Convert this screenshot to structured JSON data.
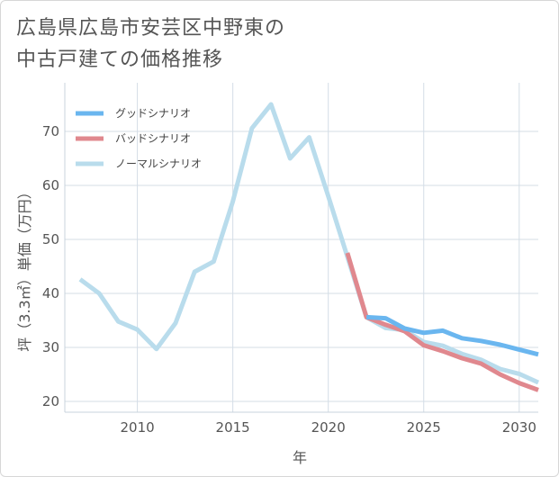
{
  "title": {
    "line1": "広島県広島市安芸区中野東の",
    "line2": "中古戸建ての価格推移"
  },
  "chart_data": {
    "type": "line",
    "xlabel": "年",
    "ylabel": "坪（3.3㎡）単価（万円）",
    "xlim": [
      2006.2,
      2031
    ],
    "ylim": [
      18,
      79
    ],
    "x_ticks": [
      2010,
      2015,
      2020,
      2025,
      2030
    ],
    "y_ticks": [
      20,
      30,
      40,
      50,
      60,
      70
    ],
    "grid": true,
    "legend_position": "top-left",
    "series": [
      {
        "name": "グッドシナリオ",
        "color": "#6ab6ef",
        "x": [
          2022,
          2023,
          2024,
          2025,
          2026,
          2027,
          2028,
          2029,
          2030,
          2031
        ],
        "values": [
          35.6,
          35.4,
          33.5,
          32.7,
          33.1,
          31.7,
          31.2,
          30.5,
          29.6,
          28.7
        ]
      },
      {
        "name": "バッドシナリオ",
        "color": "#e0888e",
        "x": [
          2021,
          2022,
          2023,
          2024,
          2025,
          2026,
          2027,
          2028,
          2029,
          2030,
          2031
        ],
        "values": [
          47.5,
          35.6,
          34.2,
          33.0,
          30.4,
          29.3,
          28.0,
          27.0,
          25.0,
          23.4,
          22.1
        ]
      },
      {
        "name": "ノーマルシナリオ",
        "color": "#b9dcec",
        "x": [
          2007,
          2008,
          2009,
          2010,
          2011,
          2012,
          2013,
          2014,
          2015,
          2016,
          2017,
          2018,
          2019,
          2020,
          2021,
          2022,
          2023,
          2024,
          2025,
          2026,
          2027,
          2028,
          2029,
          2030,
          2031
        ],
        "values": [
          42.6,
          40.0,
          34.8,
          33.3,
          29.7,
          34.5,
          44.0,
          45.9,
          57.0,
          70.6,
          75.0,
          65.0,
          68.9,
          58.0,
          46.8,
          35.6,
          33.6,
          33.2,
          31.0,
          30.3,
          28.8,
          27.7,
          26.0,
          25.1,
          23.5
        ]
      }
    ]
  }
}
